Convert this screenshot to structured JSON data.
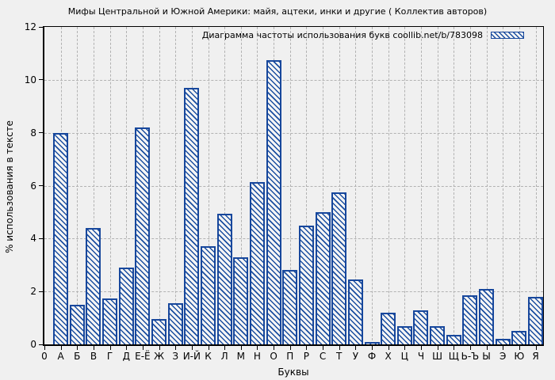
{
  "chart_data": {
    "type": "bar",
    "title": "Мифы Центральной и Южной Америки: майя, ацтеки, инки и другие ( Коллектив авторов)",
    "legend": "Диаграмма частоты использования букв coollib.net/b/783098",
    "legend_position": "top-right-inside",
    "xlabel": "Буквы",
    "ylabel": "% использования в тексте",
    "x_origin_label": "0",
    "ylim": [
      0,
      12
    ],
    "yticks": [
      0,
      2,
      4,
      6,
      8,
      10,
      12
    ],
    "grid": true,
    "bar_color": "#17479c",
    "hatch": "\\",
    "background_color": "#f0f0f0",
    "categories": [
      "А",
      "Б",
      "В",
      "Г",
      "Д",
      "Е-Ё",
      "Ж",
      "З",
      "И-Й",
      "К",
      "Л",
      "М",
      "Н",
      "О",
      "П",
      "Р",
      "С",
      "Т",
      "У",
      "Ф",
      "Х",
      "Ц",
      "Ч",
      "Ш",
      "Щ",
      "Ь-Ъ",
      "Ы",
      "Э",
      "Ю",
      "Я"
    ],
    "values": [
      8.0,
      1.5,
      4.4,
      1.75,
      2.9,
      8.2,
      0.95,
      1.55,
      9.7,
      3.7,
      4.95,
      3.3,
      6.15,
      10.75,
      2.8,
      4.5,
      5.0,
      5.75,
      2.45,
      0.1,
      1.2,
      0.7,
      1.3,
      0.7,
      0.35,
      1.85,
      2.1,
      0.2,
      0.5,
      1.8
    ]
  }
}
